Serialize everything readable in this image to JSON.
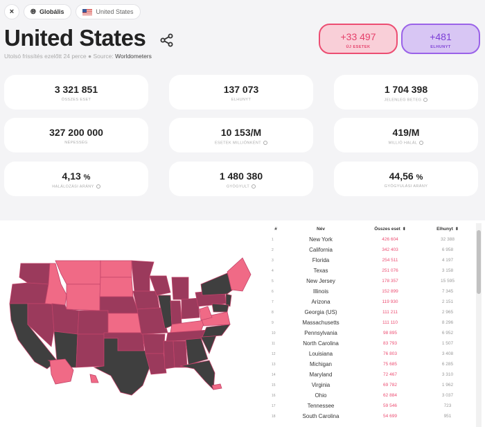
{
  "topbar": {
    "close_icon": "×",
    "global_label": "Globális",
    "country_label": "United States"
  },
  "header": {
    "title": "United States",
    "updated": "Utolsó frissítés ezelőtt 24 perce",
    "source_prefix": "Source:",
    "source_name": "Worldometers"
  },
  "badges": {
    "new_cases": {
      "value": "+33 497",
      "label": "ÚJ ESETEK"
    },
    "new_deaths": {
      "value": "+481",
      "label": "ELHUNYT"
    }
  },
  "stats": [
    {
      "value": "3 321 851",
      "unit": "",
      "label": "ÖSSZES ESET",
      "info": false
    },
    {
      "value": "137 073",
      "unit": "",
      "label": "ELHUNYT",
      "info": false
    },
    {
      "value": "1 704 398",
      "unit": "",
      "label": "JELENLEG BETEG",
      "info": true
    },
    {
      "value": "327 200 000",
      "unit": "",
      "label": "NÉPESSÉG",
      "info": false
    },
    {
      "value": "10 153/M",
      "unit": "",
      "label": "ESETEK MILLIÓNKÉNT",
      "info": true
    },
    {
      "value": "419/M",
      "unit": "",
      "label": "MILLIÓ HALÁL",
      "info": true
    },
    {
      "value": "4,13",
      "unit": "%",
      "label": "HALÁLOZÁSI ARÁNY",
      "info": true
    },
    {
      "value": "1 480 380",
      "unit": "",
      "label": "GYÓGYULT",
      "info": true
    },
    {
      "value": "44,56",
      "unit": "%",
      "label": "GYÓGYULÁSI ARÁNY",
      "info": false
    }
  ],
  "table": {
    "headers": {
      "index": "#",
      "name": "Név",
      "cases": "Összes eset",
      "deaths": "Elhunyt"
    },
    "rows": [
      {
        "i": "1",
        "name": "New York",
        "cases": "426 604",
        "deaths": "32 388"
      },
      {
        "i": "2",
        "name": "California",
        "cases": "342 403",
        "deaths": "6 958"
      },
      {
        "i": "3",
        "name": "Florida",
        "cases": "254 511",
        "deaths": "4 197"
      },
      {
        "i": "4",
        "name": "Texas",
        "cases": "251 076",
        "deaths": "3 158"
      },
      {
        "i": "5",
        "name": "New Jersey",
        "cases": "178 357",
        "deaths": "15 595"
      },
      {
        "i": "6",
        "name": "Illinois",
        "cases": "152 899",
        "deaths": "7 345"
      },
      {
        "i": "7",
        "name": "Arizona",
        "cases": "119 930",
        "deaths": "2 151"
      },
      {
        "i": "8",
        "name": "Georgia (US)",
        "cases": "111 211",
        "deaths": "2 965"
      },
      {
        "i": "9",
        "name": "Massachusetts",
        "cases": "111 110",
        "deaths": "8 296"
      },
      {
        "i": "10",
        "name": "Pennsylvania",
        "cases": "98 895",
        "deaths": "6 952"
      },
      {
        "i": "11",
        "name": "North Carolina",
        "cases": "83 793",
        "deaths": "1 507"
      },
      {
        "i": "12",
        "name": "Louisiana",
        "cases": "76 803",
        "deaths": "3 408"
      },
      {
        "i": "13",
        "name": "Michigan",
        "cases": "75 685",
        "deaths": "6 285"
      },
      {
        "i": "14",
        "name": "Maryland",
        "cases": "72 467",
        "deaths": "3 310"
      },
      {
        "i": "15",
        "name": "Virginia",
        "cases": "69 782",
        "deaths": "1 962"
      },
      {
        "i": "16",
        "name": "Ohio",
        "cases": "62 884",
        "deaths": "3 037"
      },
      {
        "i": "17",
        "name": "Tennessee",
        "cases": "59 546",
        "deaths": "723"
      },
      {
        "i": "18",
        "name": "South Carolina",
        "cases": "54 699",
        "deaths": "951"
      }
    ]
  },
  "colors": {
    "accent_pink": "#ec4d72",
    "accent_purple": "#9a62e8",
    "map_dark": "#444444",
    "map_mid": "#9b3a5c",
    "map_light": "#f06a86"
  }
}
